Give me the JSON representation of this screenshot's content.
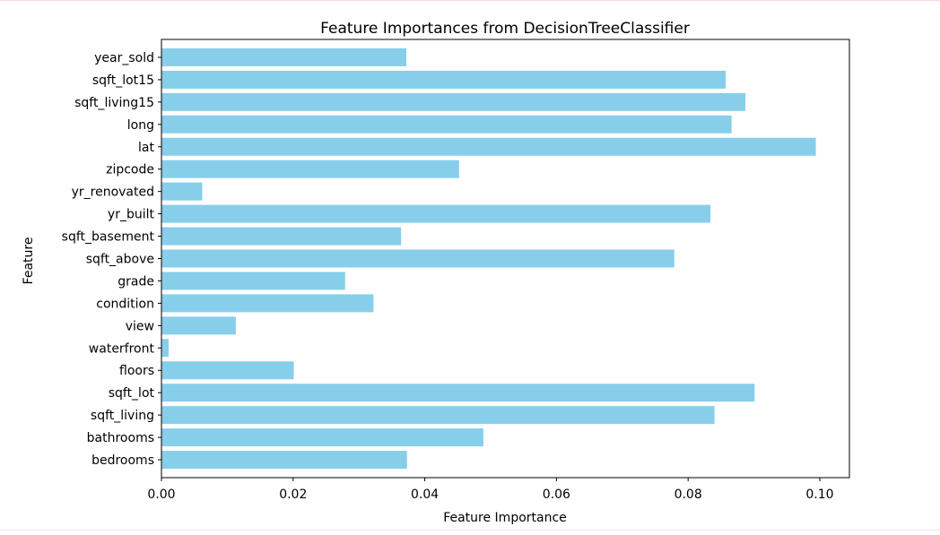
{
  "chart_data": {
    "type": "bar",
    "orientation": "horizontal",
    "title": "Feature Importances from DecisionTreeClassifier",
    "xlabel": "Feature Importance",
    "ylabel": "Feature",
    "categories": [
      "bedrooms",
      "bathrooms",
      "sqft_living",
      "sqft_lot",
      "floors",
      "waterfront",
      "view",
      "condition",
      "grade",
      "sqft_above",
      "sqft_basement",
      "yr_built",
      "yr_renovated",
      "zipcode",
      "lat",
      "long",
      "sqft_living15",
      "sqft_lot15",
      "year_sold"
    ],
    "values": [
      0.0373,
      0.0489,
      0.084,
      0.0901,
      0.0201,
      0.0011,
      0.0113,
      0.0322,
      0.0279,
      0.0779,
      0.0364,
      0.0834,
      0.0062,
      0.0452,
      0.0994,
      0.0866,
      0.0887,
      0.0857,
      0.0372
    ],
    "xlim": [
      0,
      0.1045
    ],
    "xticks": [
      "0.00",
      "0.02",
      "0.04",
      "0.06",
      "0.08",
      "0.10"
    ],
    "bar_color": "#87ceeb",
    "grid": false,
    "legend": false
  }
}
